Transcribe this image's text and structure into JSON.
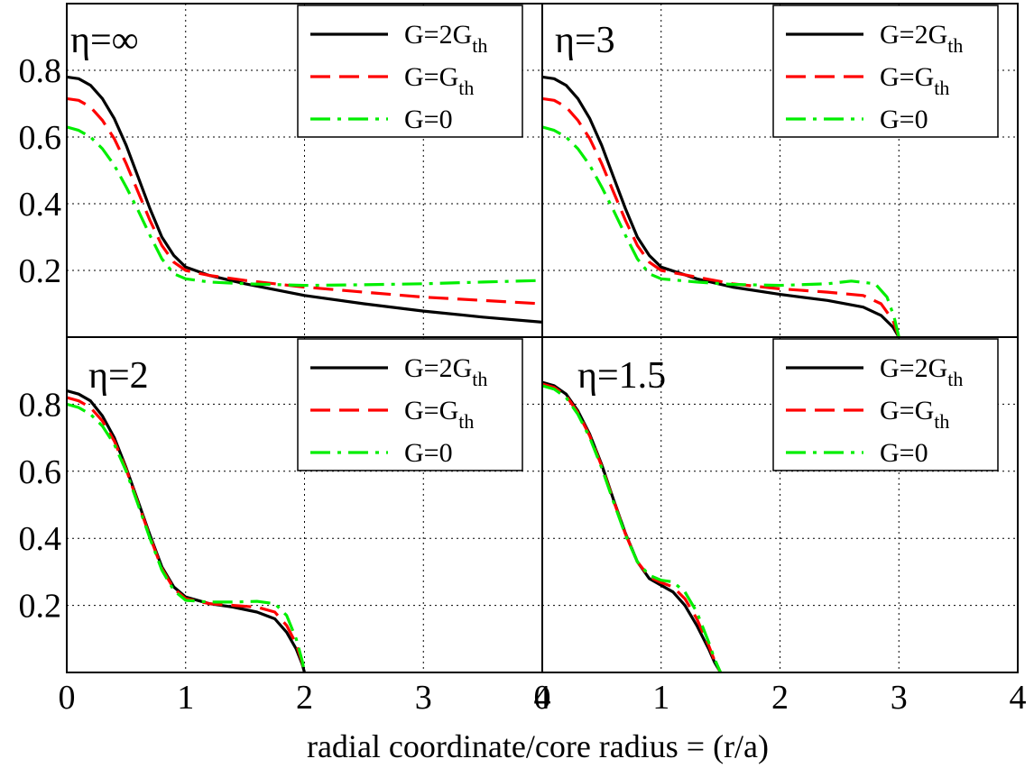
{
  "chart_data": {
    "type": "line",
    "xlabel": "radial coordinate/core radius = (r/a)",
    "ylabel": "",
    "title": "",
    "grid": true,
    "legend_placement": "top-right",
    "x_ticks": [
      "0",
      "1",
      "2",
      "3",
      "4"
    ],
    "y_ticks": [
      "0.2",
      "0.4",
      "0.6",
      "0.8"
    ],
    "series_styles": [
      {
        "name_main": "G=2G",
        "name_sub": "th",
        "color": "#000000",
        "style": "solid"
      },
      {
        "name_main": "G=G",
        "name_sub": "th",
        "color": "#ff0000",
        "style": "dashed"
      },
      {
        "name_main": "G=0",
        "name_sub": "",
        "color": "#00ee00",
        "style": "dashdot"
      }
    ],
    "panels": [
      {
        "label": "η=∞",
        "xlim": [
          0,
          4
        ],
        "ylim": [
          0,
          1.0
        ],
        "series": [
          {
            "name": "G=2Gth",
            "x": [
              0,
              0.1,
              0.2,
              0.3,
              0.4,
              0.5,
              0.6,
              0.7,
              0.8,
              0.9,
              1.0,
              1.2,
              1.5,
              2.0,
              2.5,
              3.0,
              3.5,
              4.0
            ],
            "y": [
              0.78,
              0.775,
              0.755,
              0.715,
              0.655,
              0.575,
              0.48,
              0.385,
              0.3,
              0.245,
              0.21,
              0.185,
              0.16,
              0.125,
              0.1,
              0.078,
              0.06,
              0.045
            ]
          },
          {
            "name": "G=Gth",
            "x": [
              0,
              0.1,
              0.2,
              0.3,
              0.4,
              0.5,
              0.6,
              0.7,
              0.8,
              0.9,
              1.0,
              1.2,
              1.5,
              2.0,
              2.5,
              3.0,
              3.5,
              4.0
            ],
            "y": [
              0.715,
              0.71,
              0.69,
              0.65,
              0.595,
              0.52,
              0.435,
              0.35,
              0.275,
              0.225,
              0.2,
              0.185,
              0.17,
              0.15,
              0.135,
              0.12,
              0.11,
              0.1
            ]
          },
          {
            "name": "G=0",
            "x": [
              0,
              0.1,
              0.2,
              0.3,
              0.4,
              0.5,
              0.6,
              0.7,
              0.8,
              0.9,
              1.0,
              1.2,
              1.5,
              2.0,
              2.5,
              3.0,
              3.5,
              4.0
            ],
            "y": [
              0.63,
              0.62,
              0.6,
              0.565,
              0.515,
              0.45,
              0.38,
              0.305,
              0.235,
              0.19,
              0.175,
              0.165,
              0.16,
              0.155,
              0.157,
              0.16,
              0.165,
              0.17
            ]
          }
        ]
      },
      {
        "label": "η=3",
        "xlim": [
          0,
          4
        ],
        "ylim": [
          0,
          1.0
        ],
        "series": [
          {
            "name": "G=2Gth",
            "x": [
              0,
              0.1,
              0.2,
              0.3,
              0.4,
              0.5,
              0.6,
              0.7,
              0.8,
              0.9,
              1.0,
              1.3,
              1.6,
              2.0,
              2.4,
              2.7,
              2.85,
              2.95,
              3.0
            ],
            "y": [
              0.78,
              0.775,
              0.755,
              0.715,
              0.655,
              0.575,
              0.48,
              0.385,
              0.3,
              0.245,
              0.21,
              0.175,
              0.15,
              0.128,
              0.11,
              0.09,
              0.065,
              0.03,
              0.0
            ]
          },
          {
            "name": "G=Gth",
            "x": [
              0,
              0.1,
              0.2,
              0.3,
              0.4,
              0.5,
              0.6,
              0.7,
              0.8,
              0.9,
              1.0,
              1.3,
              1.6,
              2.0,
              2.4,
              2.7,
              2.85,
              2.95,
              3.0
            ],
            "y": [
              0.715,
              0.71,
              0.69,
              0.65,
              0.595,
              0.52,
              0.435,
              0.35,
              0.275,
              0.225,
              0.2,
              0.18,
              0.16,
              0.145,
              0.135,
              0.125,
              0.1,
              0.05,
              0.0
            ]
          },
          {
            "name": "G=0",
            "x": [
              0,
              0.1,
              0.2,
              0.3,
              0.4,
              0.5,
              0.6,
              0.7,
              0.8,
              0.9,
              1.0,
              1.3,
              1.6,
              2.0,
              2.4,
              2.6,
              2.8,
              2.9,
              2.96,
              3.0
            ],
            "y": [
              0.63,
              0.62,
              0.6,
              0.565,
              0.515,
              0.45,
              0.38,
              0.305,
              0.235,
              0.19,
              0.175,
              0.165,
              0.158,
              0.155,
              0.16,
              0.168,
              0.16,
              0.12,
              0.06,
              0.0
            ]
          }
        ]
      },
      {
        "label": "η=2",
        "xlim": [
          0,
          4
        ],
        "ylim": [
          0,
          1.0
        ],
        "series": [
          {
            "name": "G=2Gth",
            "x": [
              0,
              0.1,
              0.2,
              0.3,
              0.4,
              0.5,
              0.6,
              0.7,
              0.8,
              0.9,
              1.0,
              1.2,
              1.4,
              1.6,
              1.75,
              1.85,
              1.93,
              1.98,
              2.0
            ],
            "y": [
              0.84,
              0.83,
              0.81,
              0.765,
              0.7,
              0.61,
              0.51,
              0.41,
              0.315,
              0.255,
              0.225,
              0.205,
              0.195,
              0.18,
              0.16,
              0.12,
              0.07,
              0.025,
              0.0
            ]
          },
          {
            "name": "G=Gth",
            "x": [
              0,
              0.1,
              0.2,
              0.3,
              0.4,
              0.5,
              0.6,
              0.7,
              0.8,
              0.9,
              1.0,
              1.2,
              1.4,
              1.6,
              1.75,
              1.85,
              1.93,
              1.98,
              2.0
            ],
            "y": [
              0.82,
              0.81,
              0.79,
              0.75,
              0.69,
              0.605,
              0.505,
              0.405,
              0.31,
              0.25,
              0.22,
              0.205,
              0.2,
              0.195,
              0.18,
              0.14,
              0.085,
              0.03,
              0.0
            ]
          },
          {
            "name": "G=0",
            "x": [
              0,
              0.1,
              0.2,
              0.3,
              0.4,
              0.5,
              0.6,
              0.7,
              0.8,
              0.9,
              1.0,
              1.2,
              1.4,
              1.6,
              1.75,
              1.85,
              1.93,
              1.98,
              2.0
            ],
            "y": [
              0.8,
              0.79,
              0.77,
              0.735,
              0.68,
              0.6,
              0.5,
              0.4,
              0.305,
              0.245,
              0.215,
              0.21,
              0.21,
              0.212,
              0.205,
              0.17,
              0.1,
              0.035,
              0.0
            ]
          }
        ]
      },
      {
        "label": "η=1.5",
        "xlim": [
          0,
          4
        ],
        "ylim": [
          0,
          1.0
        ],
        "series": [
          {
            "name": "G=2Gth",
            "x": [
              0,
              0.1,
              0.2,
              0.3,
              0.4,
              0.5,
              0.6,
              0.7,
              0.8,
              0.9,
              1.0,
              1.1,
              1.2,
              1.3,
              1.4,
              1.45,
              1.5
            ],
            "y": [
              0.865,
              0.855,
              0.83,
              0.78,
              0.71,
              0.62,
              0.515,
              0.415,
              0.33,
              0.28,
              0.26,
              0.24,
              0.2,
              0.14,
              0.07,
              0.03,
              0.0
            ]
          },
          {
            "name": "G=Gth",
            "x": [
              0,
              0.1,
              0.2,
              0.3,
              0.4,
              0.5,
              0.6,
              0.7,
              0.8,
              0.9,
              1.0,
              1.1,
              1.2,
              1.3,
              1.4,
              1.45,
              1.5
            ],
            "y": [
              0.86,
              0.85,
              0.825,
              0.775,
              0.705,
              0.615,
              0.512,
              0.413,
              0.33,
              0.285,
              0.268,
              0.255,
              0.22,
              0.16,
              0.08,
              0.035,
              0.0
            ]
          },
          {
            "name": "G=0",
            "x": [
              0,
              0.1,
              0.2,
              0.3,
              0.4,
              0.5,
              0.6,
              0.7,
              0.8,
              0.9,
              1.0,
              1.1,
              1.2,
              1.3,
              1.4,
              1.45,
              1.5
            ],
            "y": [
              0.855,
              0.845,
              0.82,
              0.77,
              0.7,
              0.61,
              0.508,
              0.41,
              0.33,
              0.29,
              0.275,
              0.27,
              0.24,
              0.18,
              0.09,
              0.04,
              0.0
            ]
          }
        ]
      }
    ]
  }
}
